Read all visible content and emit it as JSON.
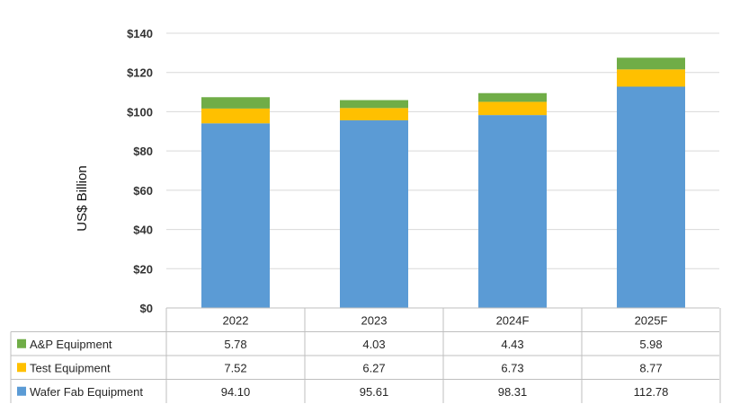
{
  "chart_data": {
    "type": "bar",
    "stacked": true,
    "title": "",
    "xlabel": "",
    "ylabel": "US$ Billion",
    "ylim": [
      0,
      140
    ],
    "yticks": [
      "$0",
      "$20",
      "$40",
      "$60",
      "$80",
      "$100",
      "$120",
      "$140"
    ],
    "grid": true,
    "legend": "table-left",
    "categories": [
      "2022",
      "2023",
      "2024F",
      "2025F"
    ],
    "series": [
      {
        "name": "Wafer Fab Equipment",
        "color": "#5B9BD5",
        "values": [
          94.1,
          95.61,
          98.31,
          112.78
        ],
        "labels": [
          "94.10",
          "95.61",
          "98.31",
          "112.78"
        ]
      },
      {
        "name": "Test Equipment",
        "color": "#FFC000",
        "values": [
          7.52,
          6.27,
          6.73,
          8.77
        ],
        "labels": [
          "7.52",
          "6.27",
          "6.73",
          "8.77"
        ]
      },
      {
        "name": "A&P Equipment",
        "color": "#70AD47",
        "values": [
          5.78,
          4.03,
          4.43,
          5.98
        ],
        "labels": [
          "5.78",
          "4.03",
          "4.43",
          "5.98"
        ]
      }
    ],
    "table_row_order": [
      "A&P Equipment",
      "Test Equipment",
      "Wafer Fab Equipment"
    ]
  }
}
